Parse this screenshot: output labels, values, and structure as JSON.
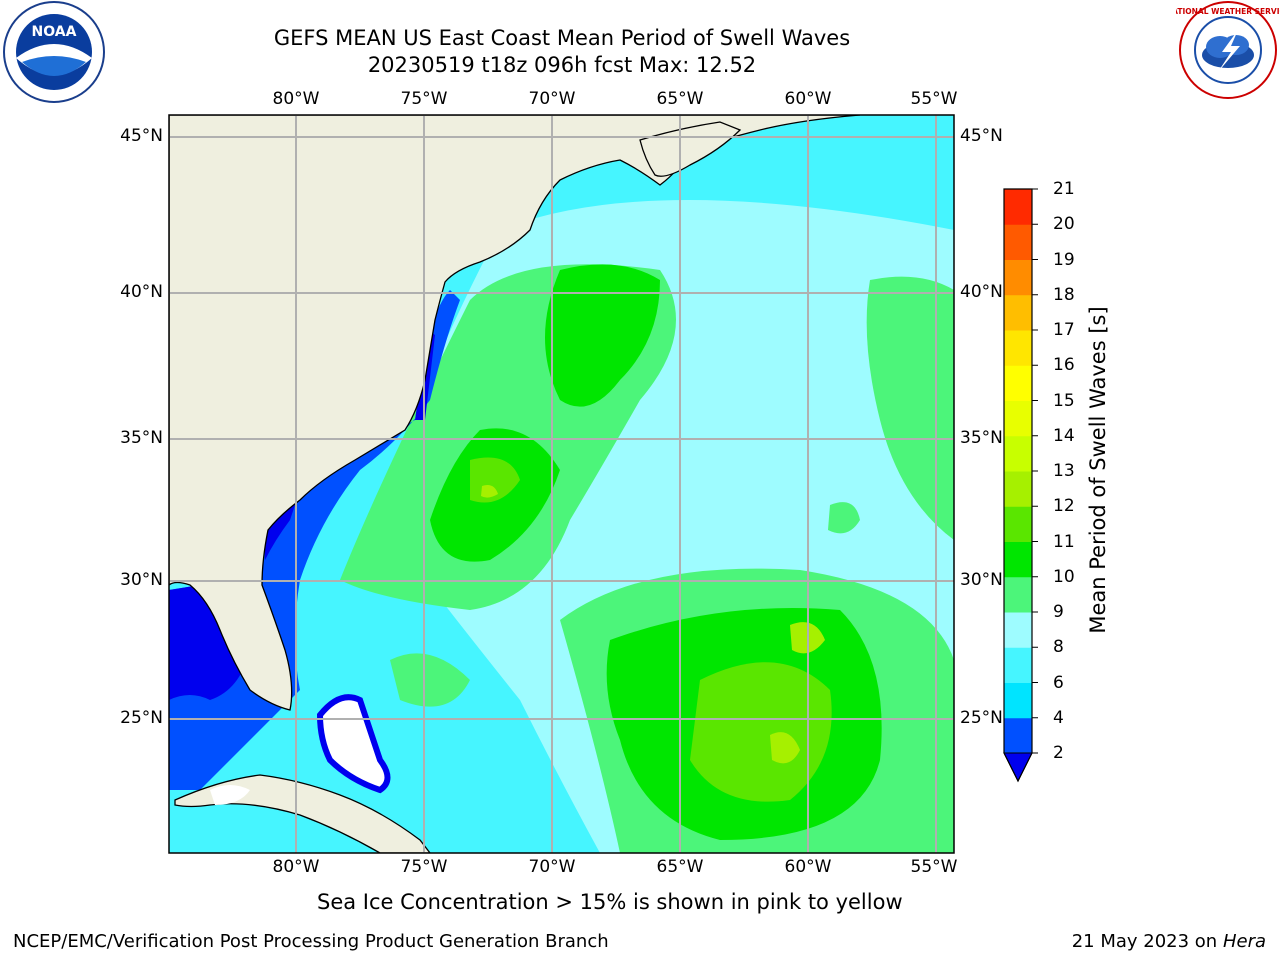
{
  "header": {
    "title_line1": "GEFS MEAN US East Coast Mean Period of Swell Waves",
    "title_line2": "20230519 t18z 096h fcst   Max: 12.52",
    "left_logo_text": "NOAA",
    "right_logo_text": "NATIONAL WEATHER SERVICE"
  },
  "map": {
    "lon_labels": [
      "80°W",
      "75°W",
      "70°W",
      "65°W",
      "60°W",
      "55°W"
    ],
    "lat_labels": [
      "45°N",
      "40°N",
      "35°N",
      "30°N",
      "25°N"
    ],
    "land_color": "#efefdf",
    "grid_color": "#b0b0b0"
  },
  "colorbar": {
    "label": "Mean Period of Swell Waves [s]",
    "ticks": [
      "2",
      "4",
      "6",
      "8",
      "9",
      "10",
      "11",
      "12",
      "13",
      "14",
      "15",
      "16",
      "17",
      "18",
      "19",
      "20",
      "21"
    ],
    "colors": [
      "#0050ff",
      "#00e4ff",
      "#46f5ff",
      "#9efcff",
      "#4cf57a",
      "#00e600",
      "#5ae600",
      "#a6f000",
      "#c8ff00",
      "#e8ff00",
      "#ffff00",
      "#ffe600",
      "#ffbe00",
      "#ff8c00",
      "#ff5a00",
      "#ff2a00"
    ],
    "extend_color": "#0000ee"
  },
  "footer": {
    "note": "Sea Ice Concentration > 15% is shown in pink to yellow",
    "left": "NCEP/EMC/Verification Post Processing Product Generation Branch",
    "date": "21 May 2023 on",
    "machine": "Hera"
  }
}
